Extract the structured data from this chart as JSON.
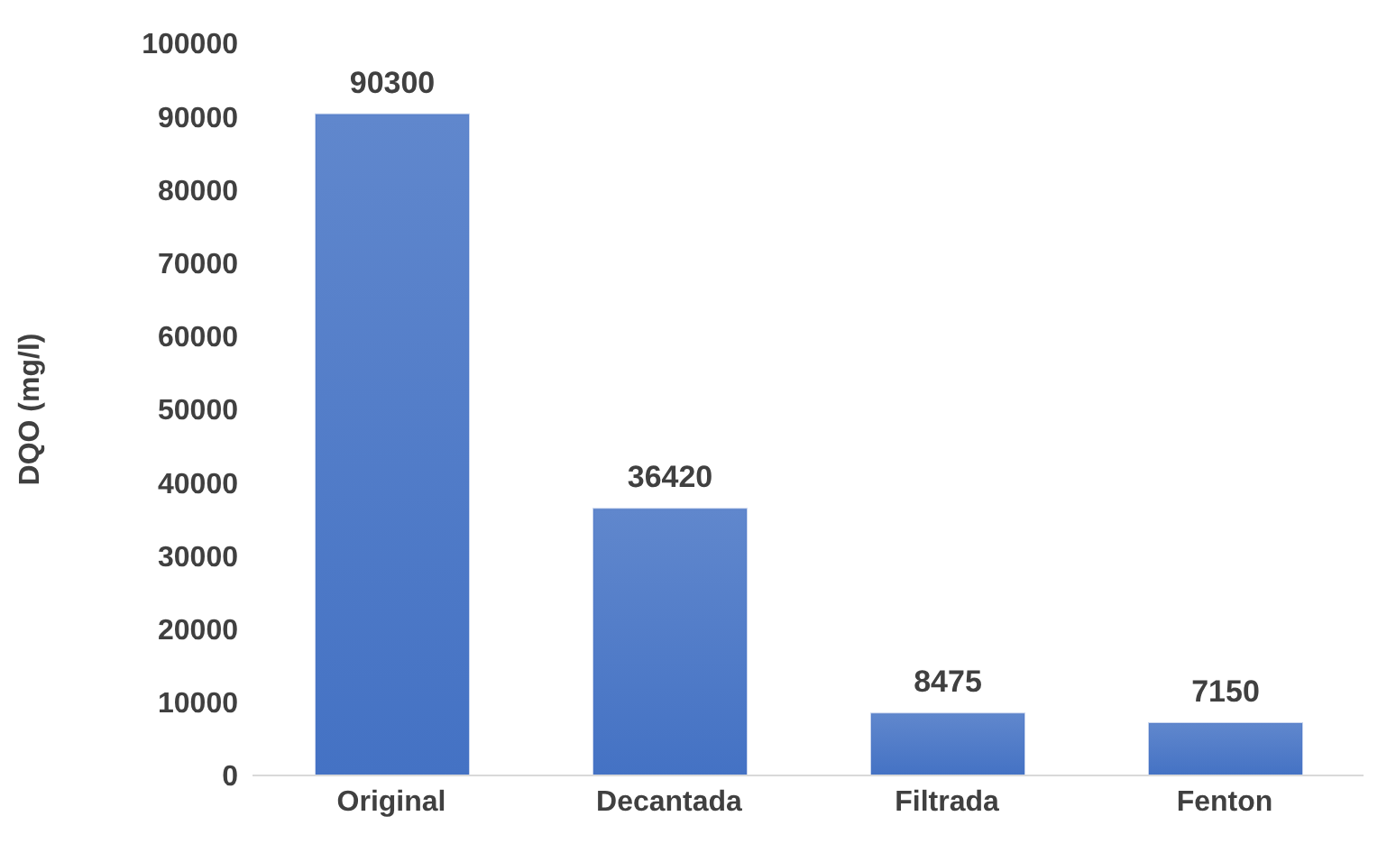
{
  "chart_data": {
    "type": "bar",
    "ylabel": "DQO (mg/l)",
    "categories": [
      "Original",
      "Decantada",
      "Filtrada",
      "Fenton"
    ],
    "values": [
      90300,
      36420,
      8475,
      7150
    ],
    "color": "#4472c4",
    "ylim": [
      0,
      100000
    ],
    "yticks": [
      0,
      10000,
      20000,
      30000,
      40000,
      50000,
      60000,
      70000,
      80000,
      90000,
      100000
    ],
    "data_labels": true,
    "grid": false,
    "legend": false
  }
}
